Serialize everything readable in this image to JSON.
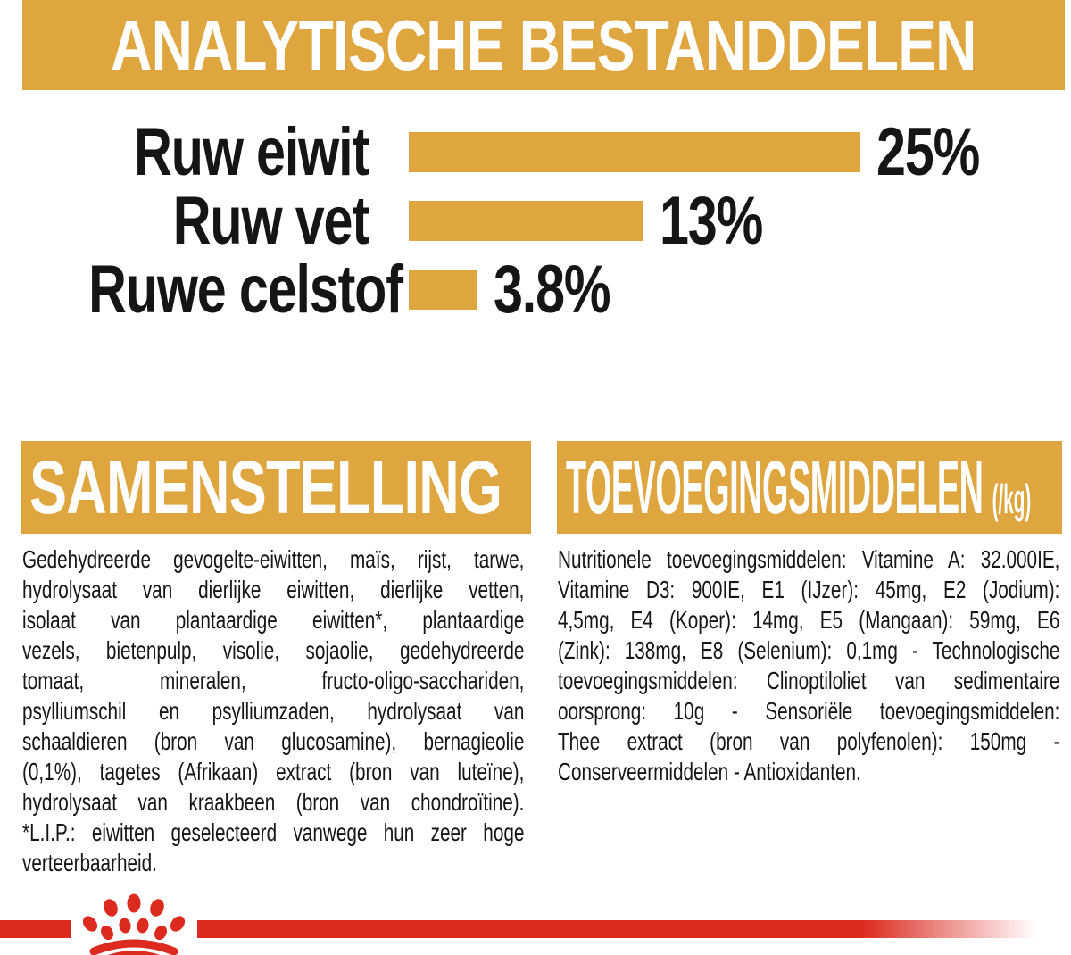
{
  "chart_data": {
    "type": "bar",
    "orientation": "horizontal",
    "title": "ANALYTISCHE BESTANDDELEN",
    "categories": [
      "Ruw eiwit",
      "Ruw vet",
      "Ruwe celstof"
    ],
    "values": [
      25,
      13,
      3.8
    ],
    "value_labels": [
      "25%",
      "13%",
      "3.8%"
    ],
    "unit": "%",
    "xlim": [
      0,
      25
    ],
    "bar_color": "#DFA640",
    "grid": false,
    "legend": false
  },
  "sections": {
    "composition": {
      "title": "SAMENSTELLING",
      "lines": [
        "Gedehydreerde gevogelte-eiwitten, maïs, rijst, tarwe,",
        "hydrolysaat van dierlijke eiwitten, dierlijke vetten,",
        "isolaat van plantaardige eiwitten*, plantaardige",
        "vezels, bietenpulp, visolie, sojaolie, gedehydreerde",
        "tomaat, mineralen, fructo-oligo-sacchariden,",
        "psylliumschil en psylliumzaden, hydrolysaat van",
        "schaaldieren (bron van glucosamine), bernagieolie",
        "(0,1%), tagetes (Afrikaan) extract (bron van luteïne),",
        "hydrolysaat van kraakbeen (bron van chondroïtine).",
        "*L.I.P.: eiwitten geselecteerd vanwege hun zeer hoge",
        "verteerbaarheid."
      ]
    },
    "additives": {
      "title": "TOEVOEGINGSMIDDELEN",
      "title_suffix": "(/kg)",
      "lines": [
        "Nutritionele toevoegingsmiddelen: Vitamine A: 32.000IE,",
        "Vitamine D3: 900IE, E1 (IJzer): 45mg, E2 (Jodium):",
        "4,5mg, E4 (Koper): 14mg, E5 (Mangaan): 59mg, E6",
        "(Zink): 138mg, E8 (Selenium): 0,1mg - Technologische",
        "toevoegingsmiddelen: Clinoptiloliet van sedimentaire",
        "oorsprong: 10g - Sensoriële toevoegingsmiddelen:",
        "Thee extract (bron van polyfenolen): 150mg -",
        "Conserveermiddelen - Antioxidanten."
      ]
    }
  },
  "footer": {
    "brand": "royal-canin-crown-paw",
    "stripe_color": "#DC2A1E"
  },
  "colors": {
    "gold": "#DFA640",
    "text_black": "#151515",
    "red": "#DC2A1E",
    "white": "#FFFFFF"
  }
}
